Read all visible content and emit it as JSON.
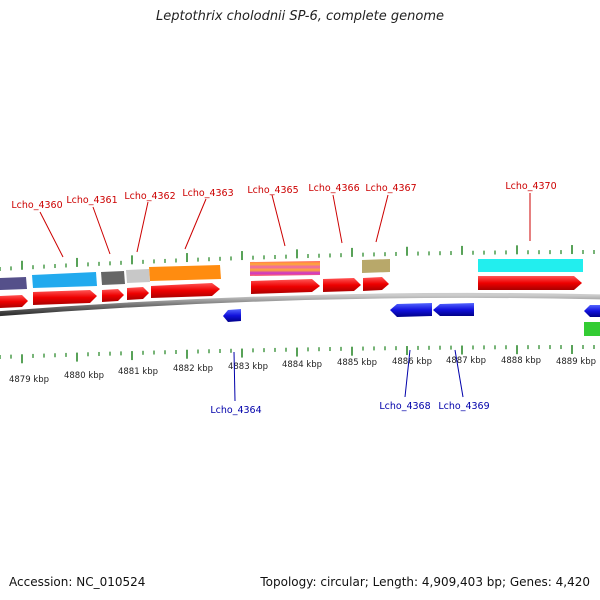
{
  "header": {
    "title": "Leptothrix cholodnii SP-6, complete genome"
  },
  "footer": {
    "accession": "Accession: NC_010524",
    "summary": "Topology: circular; Length: 4,909,403 bp; Genes: 4,420"
  },
  "colors": {
    "forward_cds": "#ee1111",
    "reverse_cds": "#1111dd",
    "tick": "#2e8b2e",
    "backbone": "#888888",
    "label_forward": "#cc0000",
    "label_reverse": "#0000aa"
  },
  "scale_labels": [
    "4879 kbp",
    "4880 kbp",
    "4881 kbp",
    "4882 kbp",
    "4883 kbp",
    "4884 kbp",
    "4885 kbp",
    "4886 kbp",
    "4887 kbp",
    "4888 kbp",
    "4889 kbp"
  ],
  "gene_labels_top": [
    "Lcho_4360",
    "Lcho_4361",
    "Lcho_4362",
    "Lcho_4363",
    "Lcho_4365",
    "Lcho_4366",
    "Lcho_4367",
    "Lcho_4370"
  ],
  "gene_labels_bottom": [
    "Lcho_4364",
    "Lcho_4368",
    "Lcho_4369"
  ],
  "feature_colors": {
    "slate": "#55508a",
    "sky": "#22aaee",
    "darkgray": "#666666",
    "lightgray": "#c8c8c8",
    "orange": "#ff8c10",
    "striped": "#ee7744",
    "khaki": "#b8a86a",
    "cyan": "#22eeee",
    "green": "#33cc33"
  }
}
